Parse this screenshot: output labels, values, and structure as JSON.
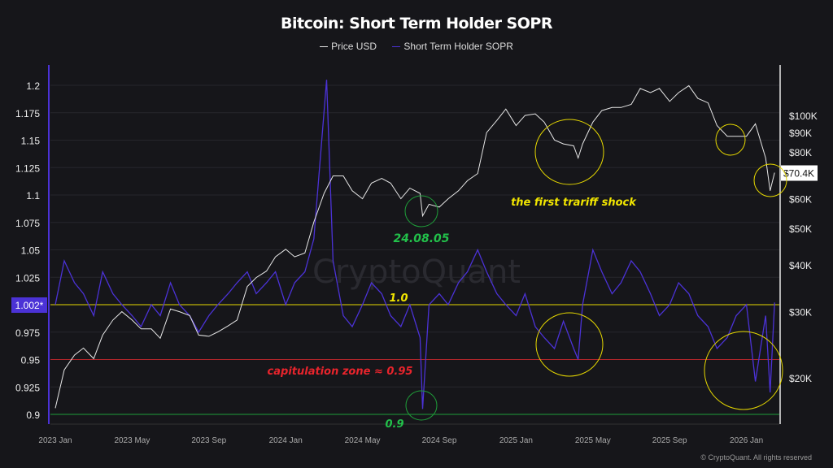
{
  "chart_data": {
    "type": "line",
    "title": "Bitcoin: Short Term Holder SOPR",
    "legend": {
      "placement": "top",
      "entries": [
        "Price USD",
        "Short Term Holder SOPR"
      ]
    },
    "colors": {
      "price": "#e6e6e6",
      "sopr": "#4b32d6",
      "line_1_0": "#e6d800",
      "line_0_95": "#b3262b",
      "line_0_9": "#1f9e3a",
      "background": "#16161a"
    },
    "x_ticks": [
      "2023 Jan",
      "2023 May",
      "2023 Sep",
      "2024 Jan",
      "2024 May",
      "2024 Sep",
      "2025 Jan",
      "2025 May",
      "2025 Sep",
      "2026 Jan"
    ],
    "y_left": {
      "ticks": [
        "1.2",
        "1.175",
        "1.15",
        "1.125",
        "1.1",
        "1.075",
        "1.05",
        "1.025",
        "1.002*",
        "0.975",
        "0.95",
        "0.925",
        "0.9"
      ],
      "range": [
        0.9,
        1.2
      ],
      "current_label": "1.002*"
    },
    "y_right": {
      "scale": "log",
      "ticks": [
        "$100K",
        "$90K",
        "$80K",
        "$60K",
        "$50K",
        "$40K",
        "$30K",
        "$20K"
      ],
      "current_label": "$70.4K"
    },
    "grid": true,
    "reference_lines": [
      {
        "value": 1.0,
        "label": "1.0"
      },
      {
        "value": 0.95,
        "label": "capitulation zone ≈ 0.95"
      },
      {
        "value": 0.9,
        "label": "0.9"
      }
    ],
    "annotations": {
      "date_label": "24.08.05",
      "tariff": "the first trariff shock"
    },
    "watermark": "CryptoQuant",
    "footer": "© CryptoQuant. All rights reserved",
    "series": [
      {
        "name": "Price USD",
        "unit": "USD thousands",
        "points": [
          [
            "2023-01-01",
            16.6
          ],
          [
            "2023-01-15",
            21
          ],
          [
            "2023-02-01",
            23
          ],
          [
            "2023-02-15",
            24
          ],
          [
            "2023-03-01",
            22.5
          ],
          [
            "2023-03-15",
            26
          ],
          [
            "2023-04-01",
            28.5
          ],
          [
            "2023-04-15",
            30
          ],
          [
            "2023-05-01",
            28.5
          ],
          [
            "2023-05-15",
            27
          ],
          [
            "2023-06-01",
            27
          ],
          [
            "2023-06-15",
            25.5
          ],
          [
            "2023-07-01",
            30.5
          ],
          [
            "2023-07-15",
            30
          ],
          [
            "2023-08-01",
            29.3
          ],
          [
            "2023-08-15",
            26
          ],
          [
            "2023-09-01",
            25.8
          ],
          [
            "2023-09-15",
            26.5
          ],
          [
            "2023-10-01",
            27.5
          ],
          [
            "2023-10-15",
            28.5
          ],
          [
            "2023-11-01",
            35
          ],
          [
            "2023-11-15",
            37
          ],
          [
            "2023-12-01",
            38.5
          ],
          [
            "2023-12-15",
            42
          ],
          [
            "2024-01-01",
            44
          ],
          [
            "2024-01-15",
            42
          ],
          [
            "2024-02-01",
            43
          ],
          [
            "2024-02-15",
            52
          ],
          [
            "2024-03-01",
            62
          ],
          [
            "2024-03-15",
            69
          ],
          [
            "2024-04-01",
            69
          ],
          [
            "2024-04-15",
            63
          ],
          [
            "2024-05-01",
            60
          ],
          [
            "2024-05-15",
            66
          ],
          [
            "2024-06-01",
            68
          ],
          [
            "2024-06-15",
            66
          ],
          [
            "2024-07-01",
            60
          ],
          [
            "2024-07-15",
            64
          ],
          [
            "2024-08-01",
            62
          ],
          [
            "2024-08-05",
            54
          ],
          [
            "2024-08-15",
            58
          ],
          [
            "2024-09-01",
            57
          ],
          [
            "2024-09-15",
            60
          ],
          [
            "2024-10-01",
            63
          ],
          [
            "2024-10-15",
            67
          ],
          [
            "2024-11-01",
            70
          ],
          [
            "2024-11-15",
            90
          ],
          [
            "2024-12-01",
            97
          ],
          [
            "2024-12-15",
            104
          ],
          [
            "2025-01-01",
            94
          ],
          [
            "2025-01-15",
            100
          ],
          [
            "2025-02-01",
            101
          ],
          [
            "2025-02-15",
            96
          ],
          [
            "2025-03-01",
            86
          ],
          [
            "2025-03-15",
            84
          ],
          [
            "2025-04-01",
            83
          ],
          [
            "2025-04-08",
            77
          ],
          [
            "2025-04-15",
            84
          ],
          [
            "2025-05-01",
            96
          ],
          [
            "2025-05-15",
            103
          ],
          [
            "2025-06-01",
            105
          ],
          [
            "2025-06-15",
            105
          ],
          [
            "2025-07-01",
            107
          ],
          [
            "2025-07-15",
            118
          ],
          [
            "2025-08-01",
            115
          ],
          [
            "2025-08-15",
            118
          ],
          [
            "2025-09-01",
            109
          ],
          [
            "2025-09-15",
            115
          ],
          [
            "2025-10-01",
            120
          ],
          [
            "2025-10-15",
            111
          ],
          [
            "2025-11-01",
            108
          ],
          [
            "2025-11-15",
            94
          ],
          [
            "2025-12-01",
            88
          ],
          [
            "2025-12-15",
            88
          ],
          [
            "2026-01-01",
            88
          ],
          [
            "2026-01-15",
            95
          ],
          [
            "2026-02-01",
            77
          ],
          [
            "2026-02-08",
            63
          ],
          [
            "2026-02-15",
            70.4
          ]
        ]
      },
      {
        "name": "Short Term Holder SOPR",
        "points": [
          [
            "2023-01-01",
            1.0
          ],
          [
            "2023-01-15",
            1.04
          ],
          [
            "2023-02-01",
            1.02
          ],
          [
            "2023-02-15",
            1.01
          ],
          [
            "2023-03-01",
            0.99
          ],
          [
            "2023-03-15",
            1.03
          ],
          [
            "2023-04-01",
            1.01
          ],
          [
            "2023-04-15",
            1.0
          ],
          [
            "2023-05-01",
            0.99
          ],
          [
            "2023-05-15",
            0.98
          ],
          [
            "2023-06-01",
            1.0
          ],
          [
            "2023-06-15",
            0.99
          ],
          [
            "2023-07-01",
            1.02
          ],
          [
            "2023-07-15",
            1.0
          ],
          [
            "2023-08-01",
            0.99
          ],
          [
            "2023-08-15",
            0.975
          ],
          [
            "2023-09-01",
            0.99
          ],
          [
            "2023-09-15",
            1.0
          ],
          [
            "2023-10-01",
            1.01
          ],
          [
            "2023-10-15",
            1.02
          ],
          [
            "2023-11-01",
            1.03
          ],
          [
            "2023-11-15",
            1.01
          ],
          [
            "2023-12-01",
            1.02
          ],
          [
            "2023-12-15",
            1.03
          ],
          [
            "2024-01-01",
            1.0
          ],
          [
            "2024-01-15",
            1.02
          ],
          [
            "2024-02-01",
            1.03
          ],
          [
            "2024-02-15",
            1.06
          ],
          [
            "2024-03-05",
            1.205
          ],
          [
            "2024-03-15",
            1.04
          ],
          [
            "2024-04-01",
            0.99
          ],
          [
            "2024-04-15",
            0.98
          ],
          [
            "2024-05-01",
            1.0
          ],
          [
            "2024-05-15",
            1.02
          ],
          [
            "2024-06-01",
            1.01
          ],
          [
            "2024-06-15",
            0.99
          ],
          [
            "2024-07-01",
            0.98
          ],
          [
            "2024-07-15",
            1.0
          ],
          [
            "2024-08-01",
            0.97
          ],
          [
            "2024-08-05",
            0.905
          ],
          [
            "2024-08-15",
            1.0
          ],
          [
            "2024-09-01",
            1.01
          ],
          [
            "2024-09-15",
            1.0
          ],
          [
            "2024-10-01",
            1.02
          ],
          [
            "2024-10-15",
            1.03
          ],
          [
            "2024-11-01",
            1.05
          ],
          [
            "2024-11-15",
            1.03
          ],
          [
            "2024-12-01",
            1.01
          ],
          [
            "2024-12-15",
            1.0
          ],
          [
            "2025-01-01",
            0.99
          ],
          [
            "2025-01-15",
            1.01
          ],
          [
            "2025-02-01",
            0.98
          ],
          [
            "2025-02-15",
            0.97
          ],
          [
            "2025-03-01",
            0.96
          ],
          [
            "2025-03-15",
            0.985
          ],
          [
            "2025-04-01",
            0.96
          ],
          [
            "2025-04-08",
            0.95
          ],
          [
            "2025-04-15",
            1.0
          ],
          [
            "2025-05-01",
            1.05
          ],
          [
            "2025-05-15",
            1.03
          ],
          [
            "2025-06-01",
            1.01
          ],
          [
            "2025-06-15",
            1.02
          ],
          [
            "2025-07-01",
            1.04
          ],
          [
            "2025-07-15",
            1.03
          ],
          [
            "2025-08-01",
            1.01
          ],
          [
            "2025-08-15",
            0.99
          ],
          [
            "2025-09-01",
            1.0
          ],
          [
            "2025-09-15",
            1.02
          ],
          [
            "2025-10-01",
            1.01
          ],
          [
            "2025-10-15",
            0.99
          ],
          [
            "2025-11-01",
            0.98
          ],
          [
            "2025-11-15",
            0.96
          ],
          [
            "2025-12-01",
            0.97
          ],
          [
            "2025-12-15",
            0.99
          ],
          [
            "2026-01-01",
            1.0
          ],
          [
            "2026-01-15",
            0.93
          ],
          [
            "2026-02-01",
            0.99
          ],
          [
            "2026-02-08",
            0.92
          ],
          [
            "2026-02-15",
            1.002
          ]
        ]
      }
    ]
  }
}
